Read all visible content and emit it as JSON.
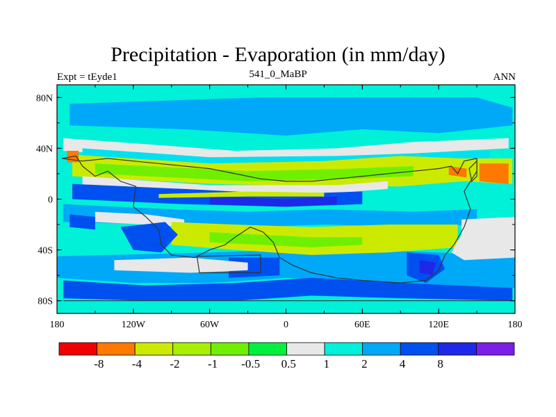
{
  "title": "Precipitation - Evaporation (in mm/day)",
  "left_string": "Expt = tEyde1",
  "center_string": "541_0_MaBP",
  "right_string": "ANN",
  "map": {
    "lon_range": [
      -180,
      180
    ],
    "lat_range": [
      -90,
      90
    ],
    "lat_ticks": [
      {
        "value": 80,
        "label": "80N"
      },
      {
        "value": 40,
        "label": "40N"
      },
      {
        "value": 0,
        "label": "0"
      },
      {
        "value": -40,
        "label": "40S"
      },
      {
        "value": -80,
        "label": "80S"
      }
    ],
    "lon_ticks": [
      {
        "value": -180,
        "label": "180"
      },
      {
        "value": -120,
        "label": "120W"
      },
      {
        "value": -60,
        "label": "60W"
      },
      {
        "value": 0,
        "label": "0"
      },
      {
        "value": 60,
        "label": "60E"
      },
      {
        "value": 120,
        "label": "120E"
      },
      {
        "value": 180,
        "label": "180"
      }
    ],
    "background_color": "#00f0d8",
    "fields": [
      {
        "color": "#00a8f8",
        "pts": [
          [
            -170,
            75
          ],
          [
            -20,
            80
          ],
          [
            150,
            80
          ],
          [
            178,
            72
          ],
          [
            178,
            58
          ],
          [
            120,
            52
          ],
          [
            60,
            55
          ],
          [
            0,
            50
          ],
          [
            -80,
            55
          ],
          [
            -170,
            58
          ]
        ]
      },
      {
        "color": "#00a8f8",
        "pts": [
          [
            -180,
            -45
          ],
          [
            -60,
            -42
          ],
          [
            0,
            -40
          ],
          [
            60,
            -40
          ],
          [
            120,
            -42
          ],
          [
            180,
            -45
          ],
          [
            180,
            -70
          ],
          [
            120,
            -70
          ],
          [
            60,
            -65
          ],
          [
            0,
            -62
          ],
          [
            -60,
            -66
          ],
          [
            -120,
            -66
          ],
          [
            -180,
            -62
          ]
        ]
      },
      {
        "color": "#e8e8e8",
        "pts": [
          [
            -175,
            48
          ],
          [
            -120,
            44
          ],
          [
            -40,
            38
          ],
          [
            40,
            40
          ],
          [
            100,
            45
          ],
          [
            175,
            48
          ],
          [
            175,
            40
          ],
          [
            100,
            36
          ],
          [
            40,
            32
          ],
          [
            -40,
            30
          ],
          [
            -120,
            34
          ],
          [
            -175,
            38
          ]
        ]
      },
      {
        "color": "#00e0f0",
        "pts": [
          [
            -160,
            40
          ],
          [
            -60,
            33
          ],
          [
            40,
            34
          ],
          [
            160,
            38
          ],
          [
            160,
            32
          ],
          [
            40,
            28
          ],
          [
            -60,
            28
          ],
          [
            -160,
            34
          ]
        ]
      },
      {
        "color": "#ccea00",
        "pts": [
          [
            -168,
            35
          ],
          [
            -60,
            28
          ],
          [
            30,
            30
          ],
          [
            90,
            34
          ],
          [
            140,
            32
          ],
          [
            178,
            32
          ],
          [
            178,
            12
          ],
          [
            140,
            14
          ],
          [
            90,
            10
          ],
          [
            30,
            10
          ],
          [
            -60,
            12
          ],
          [
            -168,
            18
          ]
        ]
      },
      {
        "color": "#70f000",
        "pts": [
          [
            -150,
            28
          ],
          [
            -30,
            22
          ],
          [
            50,
            24
          ],
          [
            100,
            26
          ],
          [
            100,
            18
          ],
          [
            50,
            16
          ],
          [
            -30,
            14
          ],
          [
            -150,
            20
          ]
        ]
      },
      {
        "color": "#ff7800",
        "pts": [
          [
            128,
            26
          ],
          [
            142,
            24
          ],
          [
            142,
            17
          ],
          [
            128,
            19
          ]
        ]
      },
      {
        "color": "#ff7800",
        "pts": [
          [
            152,
            28
          ],
          [
            175,
            28
          ],
          [
            175,
            12
          ],
          [
            152,
            14
          ]
        ]
      },
      {
        "color": "#ff7800",
        "pts": [
          [
            -172,
            38
          ],
          [
            -163,
            38
          ],
          [
            -163,
            29
          ],
          [
            -172,
            29
          ]
        ]
      },
      {
        "color": "#e8e8e8",
        "pts": [
          [
            -160,
            18
          ],
          [
            -60,
            11
          ],
          [
            40,
            11
          ],
          [
            80,
            14
          ],
          [
            80,
            8
          ],
          [
            40,
            5
          ],
          [
            -60,
            5
          ],
          [
            -160,
            10
          ]
        ]
      },
      {
        "color": "#0050f0",
        "pts": [
          [
            -168,
            12
          ],
          [
            -80,
            8
          ],
          [
            0,
            4
          ],
          [
            60,
            6
          ],
          [
            60,
            -4
          ],
          [
            0,
            -6
          ],
          [
            -80,
            -4
          ],
          [
            -168,
            0
          ]
        ]
      },
      {
        "color": "#1e28e8",
        "pts": [
          [
            -60,
            2
          ],
          [
            0,
            0
          ],
          [
            40,
            2
          ],
          [
            40,
            -4
          ],
          [
            0,
            -6
          ],
          [
            -60,
            -4
          ]
        ]
      },
      {
        "color": "#ccea00",
        "pts": [
          [
            -100,
            4
          ],
          [
            -30,
            6
          ],
          [
            30,
            5
          ],
          [
            30,
            2
          ],
          [
            -30,
            2
          ],
          [
            -100,
            1
          ]
        ]
      },
      {
        "color": "#00a8f8",
        "pts": [
          [
            -175,
            -4
          ],
          [
            -90,
            -8
          ],
          [
            -30,
            -10
          ],
          [
            30,
            -8
          ],
          [
            100,
            -10
          ],
          [
            150,
            -8
          ],
          [
            150,
            -20
          ],
          [
            100,
            -22
          ],
          [
            30,
            -20
          ],
          [
            -30,
            -22
          ],
          [
            -90,
            -20
          ],
          [
            -175,
            -18
          ]
        ]
      },
      {
        "color": "#e8e8e8",
        "pts": [
          [
            -150,
            -10
          ],
          [
            -110,
            -12
          ],
          [
            -80,
            -16
          ],
          [
            -80,
            -22
          ],
          [
            -110,
            -20
          ],
          [
            -150,
            -18
          ]
        ]
      },
      {
        "color": "#ccea00",
        "pts": [
          [
            -90,
            -18
          ],
          [
            -40,
            -20
          ],
          [
            20,
            -22
          ],
          [
            80,
            -20
          ],
          [
            135,
            -20
          ],
          [
            135,
            -38
          ],
          [
            80,
            -42
          ],
          [
            20,
            -44
          ],
          [
            -40,
            -40
          ],
          [
            -90,
            -36
          ]
        ]
      },
      {
        "color": "#70f000",
        "pts": [
          [
            -60,
            -26
          ],
          [
            -20,
            -28
          ],
          [
            20,
            -30
          ],
          [
            60,
            -30
          ],
          [
            60,
            -36
          ],
          [
            20,
            -38
          ],
          [
            -20,
            -36
          ],
          [
            -60,
            -34
          ]
        ]
      },
      {
        "color": "#e8e8e8",
        "pts": [
          [
            138,
            -16
          ],
          [
            180,
            -14
          ],
          [
            180,
            -46
          ],
          [
            140,
            -48
          ],
          [
            130,
            -42
          ],
          [
            138,
            -28
          ]
        ]
      },
      {
        "color": "#0050f0",
        "pts": [
          [
            -170,
            -12
          ],
          [
            -150,
            -14
          ],
          [
            -150,
            -24
          ],
          [
            -170,
            -22
          ]
        ]
      },
      {
        "color": "#0050f0",
        "pts": [
          [
            -130,
            -22
          ],
          [
            -95,
            -18
          ],
          [
            -85,
            -28
          ],
          [
            -98,
            -42
          ],
          [
            -120,
            -40
          ]
        ]
      },
      {
        "color": "#0050f0",
        "pts": [
          [
            -45,
            -46
          ],
          [
            -5,
            -46
          ],
          [
            -5,
            -60
          ],
          [
            -45,
            -62
          ]
        ]
      },
      {
        "color": "#0050f0",
        "pts": [
          [
            95,
            -42
          ],
          [
            120,
            -44
          ],
          [
            125,
            -55
          ],
          [
            110,
            -66
          ],
          [
            95,
            -60
          ]
        ]
      },
      {
        "color": "#1e28e8",
        "pts": [
          [
            105,
            -48
          ],
          [
            118,
            -50
          ],
          [
            115,
            -60
          ],
          [
            105,
            -58
          ]
        ]
      },
      {
        "color": "#0050f0",
        "pts": [
          [
            -175,
            -64
          ],
          [
            -110,
            -68
          ],
          [
            -40,
            -66
          ],
          [
            20,
            -62
          ],
          [
            90,
            -66
          ],
          [
            178,
            -70
          ],
          [
            178,
            -80
          ],
          [
            90,
            -78
          ],
          [
            20,
            -76
          ],
          [
            -40,
            -80
          ],
          [
            -110,
            -80
          ],
          [
            -175,
            -78
          ]
        ]
      },
      {
        "color": "#e8e8e8",
        "pts": [
          [
            -135,
            -48
          ],
          [
            -75,
            -46
          ],
          [
            -30,
            -50
          ],
          [
            -30,
            -56
          ],
          [
            -75,
            -58
          ],
          [
            -135,
            -56
          ]
        ]
      },
      {
        "color": "#00f0d8",
        "pts": [
          [
            -180,
            -80
          ],
          [
            180,
            -80
          ],
          [
            180,
            -90
          ],
          [
            -180,
            -90
          ]
        ]
      }
    ],
    "coast_outlines": [
      [
        [
          -176,
          32
        ],
        [
          -165,
          34
        ],
        [
          -160,
          26
        ],
        [
          -150,
          18
        ],
        [
          -140,
          22
        ],
        [
          -130,
          14
        ],
        [
          -118,
          10
        ],
        [
          -120,
          -6
        ],
        [
          -110,
          -14
        ],
        [
          -100,
          -24
        ],
        [
          -98,
          -36
        ],
        [
          -90,
          -44
        ],
        [
          -72,
          -46
        ],
        [
          -60,
          -40
        ],
        [
          -48,
          -36
        ],
        [
          -40,
          -30
        ],
        [
          -28,
          -22
        ],
        [
          -18,
          -26
        ],
        [
          -10,
          -34
        ],
        [
          -5,
          -46
        ],
        [
          5,
          -52
        ],
        [
          20,
          -58
        ],
        [
          40,
          -62
        ],
        [
          60,
          -64
        ],
        [
          90,
          -66
        ],
        [
          110,
          -64
        ],
        [
          120,
          -56
        ],
        [
          125,
          -44
        ],
        [
          132,
          -36
        ],
        [
          140,
          -22
        ],
        [
          145,
          -8
        ],
        [
          140,
          6
        ],
        [
          150,
          22
        ],
        [
          150,
          32
        ],
        [
          140,
          30
        ],
        [
          135,
          20
        ],
        [
          130,
          26
        ],
        [
          120,
          24
        ],
        [
          100,
          22
        ],
        [
          80,
          20
        ],
        [
          60,
          18
        ],
        [
          40,
          16
        ],
        [
          20,
          14
        ],
        [
          0,
          14
        ],
        [
          -20,
          16
        ],
        [
          -40,
          20
        ],
        [
          -60,
          24
        ],
        [
          -80,
          26
        ],
        [
          -100,
          28
        ],
        [
          -120,
          30
        ],
        [
          -140,
          32
        ],
        [
          -160,
          30
        ]
      ],
      [
        [
          -70,
          -45
        ],
        [
          -20,
          -44
        ],
        [
          -20,
          -58
        ],
        [
          -68,
          -58
        ]
      ],
      [
        [
          144,
          24
        ],
        [
          150,
          30
        ],
        [
          150,
          18
        ],
        [
          146,
          14
        ]
      ],
      [
        [
          -175,
          -80
        ],
        [
          180,
          -80
        ]
      ]
    ]
  },
  "colorbar": {
    "colors": [
      "#f00000",
      "#ff7800",
      "#ccea00",
      "#a8f000",
      "#70f000",
      "#00f040",
      "#e8e8e8",
      "#00f0d8",
      "#00a8f8",
      "#0050f0",
      "#1e28e8",
      "#7a1ee8"
    ],
    "labels": [
      "-8",
      "-4",
      "-2",
      "-1",
      "-0.5",
      "0.5",
      "1",
      "2",
      "4",
      "8"
    ]
  }
}
